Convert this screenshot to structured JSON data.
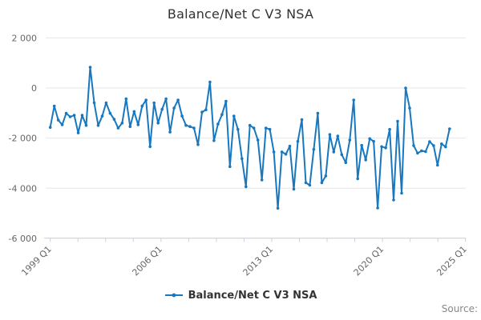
{
  "title": "Balance/Net C V3 NSA",
  "legend": {
    "label": "Balance/Net C V3 NSA"
  },
  "source_label": "Source:",
  "colors": {
    "line": "#1878bf",
    "grid": "#e6e6e6",
    "axis": "#c9d4e4",
    "tick_label": "#666666",
    "title": "#333333",
    "source": "#888888"
  },
  "chart_data": {
    "type": "line",
    "title": "Balance/Net C V3 NSA",
    "series_name": "Balance/Net C V3 NSA",
    "x_unit": "quarter",
    "x_start": "1999 Q1",
    "x_end": "2024 Q1",
    "ylim": [
      -6000,
      2000
    ],
    "grid": "horizontal",
    "legend_position": "bottom",
    "y_ticks": [
      2000,
      0,
      -2000,
      -4000,
      -6000
    ],
    "y_tick_labels": [
      "2 000",
      "0",
      "-2 000",
      "-4 000",
      "-6 000"
    ],
    "x_tick_labels": [
      "1999 Q1",
      "2006 Q1",
      "2013 Q1",
      "2020 Q1",
      "2025 Q1"
    ],
    "n_axis_ticks": 16,
    "labeled_tick_indices": [
      0,
      4,
      8,
      12,
      15
    ],
    "quarters_total": 104,
    "values": [
      -1570,
      -720,
      -1280,
      -1470,
      -1010,
      -1150,
      -1090,
      -1790,
      -1090,
      -1490,
      830,
      -590,
      -1490,
      -1120,
      -590,
      -1010,
      -1250,
      -1600,
      -1400,
      -430,
      -1540,
      -940,
      -1470,
      -720,
      -480,
      -2340,
      -590,
      -1400,
      -850,
      -430,
      -1760,
      -800,
      -480,
      -1120,
      -1490,
      -1540,
      -1600,
      -2260,
      -960,
      -870,
      240,
      -2100,
      -1440,
      -1060,
      -530,
      -3140,
      -1120,
      -1650,
      -2820,
      -3940,
      -1490,
      -1600,
      -2080,
      -3670,
      -1600,
      -1650,
      -2550,
      -4800,
      -2550,
      -2640,
      -2320,
      -4040,
      -2130,
      -1260,
      -3780,
      -3880,
      -2450,
      -1010,
      -3780,
      -3510,
      -1860,
      -2550,
      -1920,
      -2660,
      -2980,
      -2080,
      -480,
      -3620,
      -2290,
      -2870,
      -2020,
      -2130,
      -4790,
      -2340,
      -2390,
      -1650,
      -4470,
      -1330,
      -4200,
      0,
      -800,
      -2300,
      -2600,
      -2510,
      -2540,
      -2140,
      -2300,
      -3080,
      -2230,
      -2350,
      -1630
    ]
  }
}
